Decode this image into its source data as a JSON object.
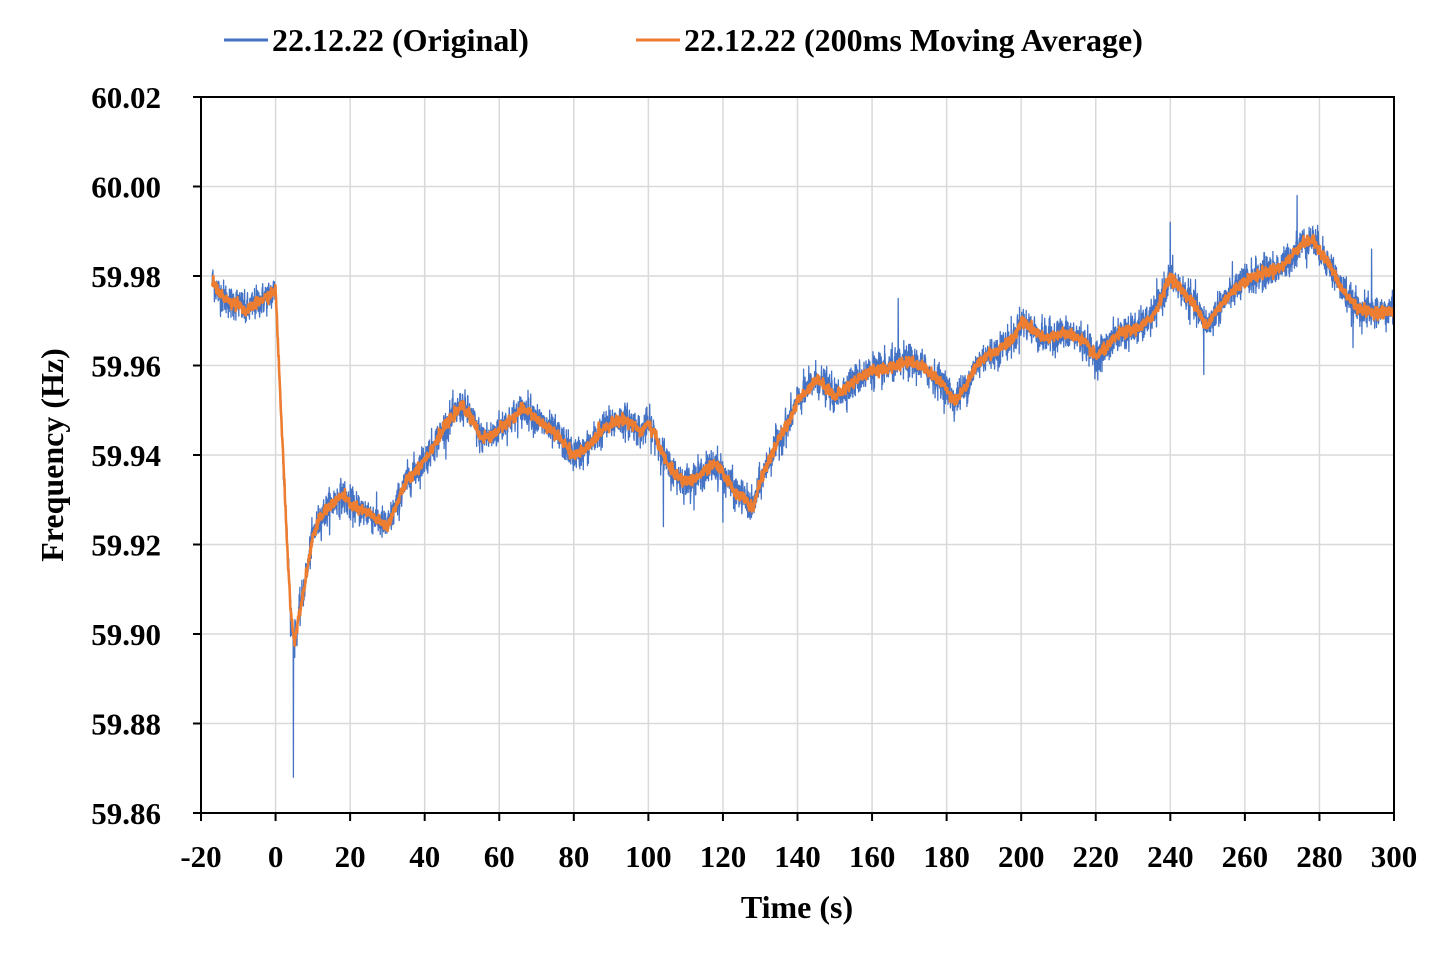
{
  "chart_data": {
    "type": "line",
    "title": "",
    "xlabel": "Time (s)",
    "ylabel": "Frequency (Hz)",
    "xlim": [
      -20,
      300
    ],
    "ylim": [
      59.86,
      60.02
    ],
    "grid": true,
    "legend_position": "top",
    "x_ticks": [
      "-20",
      "0",
      "20",
      "40",
      "60",
      "80",
      "100",
      "120",
      "140",
      "160",
      "180",
      "200",
      "220",
      "240",
      "260",
      "280",
      "300"
    ],
    "y_ticks": [
      "59.86",
      "59.88",
      "59.90",
      "59.92",
      "59.94",
      "59.96",
      "59.98",
      "60.00",
      "60.02"
    ],
    "series": [
      {
        "name": "22.12.22 (Original)",
        "color": "#4472C4",
        "x": [
          -17,
          -15,
          -12,
          -10,
          -8,
          -5,
          -3,
          -1,
          0,
          1,
          2,
          3,
          4,
          5,
          6,
          8,
          10,
          12,
          15,
          18,
          20,
          22,
          25,
          28,
          30,
          32,
          35,
          38,
          40,
          43,
          46,
          48,
          50,
          52,
          55,
          58,
          60,
          63,
          66,
          68,
          70,
          73,
          76,
          78,
          80,
          83,
          86,
          88,
          90,
          93,
          96,
          98,
          100,
          102,
          105,
          108,
          110,
          113,
          116,
          118,
          120,
          123,
          126,
          128,
          130,
          133,
          136,
          138,
          140,
          143,
          145,
          148,
          150,
          153,
          156,
          160,
          163,
          166,
          170,
          173,
          176,
          180,
          182,
          185,
          188,
          190,
          193,
          196,
          198,
          200,
          203,
          206,
          210,
          213,
          216,
          220,
          223,
          226,
          230,
          233,
          236,
          240,
          243,
          246,
          249,
          250,
          253,
          256,
          260,
          263,
          266,
          270,
          273,
          275,
          278,
          280,
          283,
          286,
          290,
          293,
          296,
          300
        ],
        "y": [
          59.979,
          59.976,
          59.974,
          59.974,
          59.972,
          59.974,
          59.975,
          59.976,
          59.977,
          59.958,
          59.94,
          59.922,
          59.906,
          59.898,
          59.903,
          59.912,
          59.922,
          59.926,
          59.929,
          59.931,
          59.929,
          59.928,
          59.927,
          59.925,
          59.924,
          59.928,
          59.934,
          59.937,
          59.939,
          59.943,
          59.947,
          59.949,
          59.951,
          59.949,
          59.944,
          59.944,
          59.946,
          59.948,
          59.95,
          59.95,
          59.948,
          59.946,
          59.944,
          59.942,
          59.94,
          59.941,
          59.944,
          59.946,
          59.947,
          59.948,
          59.947,
          59.945,
          59.947,
          59.944,
          59.938,
          59.935,
          59.934,
          59.935,
          59.937,
          59.938,
          59.936,
          59.932,
          59.93,
          59.928,
          59.934,
          59.94,
          59.945,
          59.948,
          59.952,
          59.955,
          59.957,
          59.955,
          59.953,
          59.955,
          59.957,
          59.959,
          59.959,
          59.96,
          59.961,
          59.96,
          59.958,
          59.955,
          59.952,
          59.955,
          59.96,
          59.962,
          59.963,
          59.965,
          59.966,
          59.97,
          59.968,
          59.966,
          59.967,
          59.967,
          59.966,
          59.962,
          59.964,
          59.967,
          59.968,
          59.969,
          59.972,
          59.98,
          59.977,
          59.974,
          59.97,
          59.969,
          59.973,
          59.976,
          59.979,
          59.98,
          59.981,
          59.982,
          59.985,
          59.987,
          59.988,
          59.986,
          59.982,
          59.977,
          59.973,
          59.972,
          59.972,
          59.972
        ]
      },
      {
        "name": "22.12.22 (200ms Moving Average)",
        "color": "#ED7D31",
        "x": [
          -17,
          -15,
          -12,
          -10,
          -8,
          -5,
          -3,
          -1,
          0,
          1,
          2,
          3,
          4,
          5,
          6,
          8,
          10,
          12,
          15,
          18,
          20,
          22,
          25,
          28,
          30,
          32,
          35,
          38,
          40,
          43,
          46,
          48,
          50,
          52,
          55,
          58,
          60,
          63,
          66,
          68,
          70,
          73,
          76,
          78,
          80,
          83,
          86,
          88,
          90,
          93,
          96,
          98,
          100,
          102,
          105,
          108,
          110,
          113,
          116,
          118,
          120,
          123,
          126,
          128,
          130,
          133,
          136,
          138,
          140,
          143,
          145,
          148,
          150,
          153,
          156,
          160,
          163,
          166,
          170,
          173,
          176,
          180,
          182,
          185,
          188,
          190,
          193,
          196,
          198,
          200,
          203,
          206,
          210,
          213,
          216,
          220,
          223,
          226,
          230,
          233,
          236,
          240,
          243,
          246,
          249,
          250,
          253,
          256,
          260,
          263,
          266,
          270,
          273,
          275,
          278,
          280,
          283,
          286,
          290,
          293,
          296,
          300
        ],
        "y": [
          59.979,
          59.976,
          59.974,
          59.974,
          59.972,
          59.974,
          59.975,
          59.976,
          59.977,
          59.958,
          59.94,
          59.922,
          59.906,
          59.898,
          59.903,
          59.912,
          59.922,
          59.926,
          59.929,
          59.931,
          59.929,
          59.928,
          59.927,
          59.925,
          59.924,
          59.928,
          59.934,
          59.937,
          59.939,
          59.943,
          59.947,
          59.949,
          59.951,
          59.949,
          59.944,
          59.944,
          59.946,
          59.948,
          59.95,
          59.95,
          59.948,
          59.946,
          59.944,
          59.942,
          59.94,
          59.941,
          59.944,
          59.946,
          59.947,
          59.948,
          59.947,
          59.945,
          59.947,
          59.944,
          59.938,
          59.935,
          59.934,
          59.935,
          59.937,
          59.938,
          59.936,
          59.932,
          59.93,
          59.928,
          59.934,
          59.94,
          59.945,
          59.948,
          59.952,
          59.955,
          59.957,
          59.955,
          59.953,
          59.955,
          59.957,
          59.959,
          59.959,
          59.96,
          59.961,
          59.96,
          59.958,
          59.955,
          59.952,
          59.955,
          59.96,
          59.962,
          59.963,
          59.965,
          59.966,
          59.97,
          59.968,
          59.966,
          59.967,
          59.967,
          59.966,
          59.962,
          59.964,
          59.967,
          59.968,
          59.969,
          59.972,
          59.98,
          59.977,
          59.974,
          59.97,
          59.969,
          59.973,
          59.976,
          59.979,
          59.98,
          59.981,
          59.982,
          59.985,
          59.987,
          59.988,
          59.986,
          59.982,
          59.977,
          59.973,
          59.972,
          59.972,
          59.972
        ]
      }
    ]
  }
}
